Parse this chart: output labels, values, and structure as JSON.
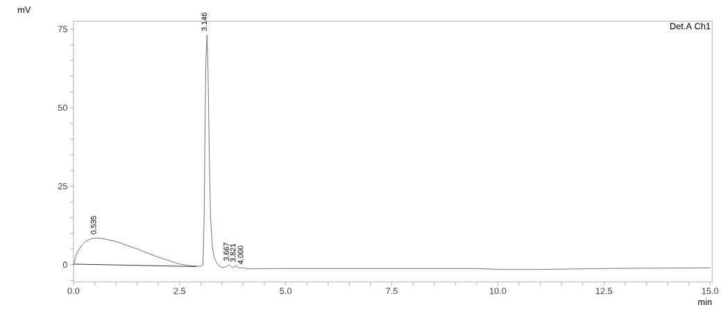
{
  "chart_data": {
    "type": "line",
    "xlabel": "min",
    "ylabel": "mV",
    "xlim": [
      0,
      15.05
    ],
    "ylim": [
      -5.5,
      77.5
    ],
    "xticks": [
      {
        "value": 0,
        "label": "0.0"
      },
      {
        "value": 0.5,
        "label": null
      },
      {
        "value": 1.0,
        "label": null
      },
      {
        "value": 1.5,
        "label": null
      },
      {
        "value": 2.0,
        "label": null
      },
      {
        "value": 2.5,
        "label": "2.5"
      },
      {
        "value": 3.0,
        "label": null
      },
      {
        "value": 3.5,
        "label": null
      },
      {
        "value": 4.0,
        "label": null
      },
      {
        "value": 4.5,
        "label": null
      },
      {
        "value": 5.0,
        "label": "5.0"
      },
      {
        "value": 5.5,
        "label": null
      },
      {
        "value": 6.0,
        "label": null
      },
      {
        "value": 6.5,
        "label": null
      },
      {
        "value": 7.0,
        "label": null
      },
      {
        "value": 7.5,
        "label": "7.5"
      },
      {
        "value": 8.0,
        "label": null
      },
      {
        "value": 8.5,
        "label": null
      },
      {
        "value": 9.0,
        "label": null
      },
      {
        "value": 9.5,
        "label": null
      },
      {
        "value": 10.0,
        "label": "10.0"
      },
      {
        "value": 10.5,
        "label": null
      },
      {
        "value": 11.0,
        "label": null
      },
      {
        "value": 11.5,
        "label": null
      },
      {
        "value": 12.0,
        "label": null
      },
      {
        "value": 12.5,
        "label": "12.5"
      },
      {
        "value": 13.0,
        "label": null
      },
      {
        "value": 13.5,
        "label": null
      },
      {
        "value": 14.0,
        "label": null
      },
      {
        "value": 14.5,
        "label": null
      },
      {
        "value": 15.0,
        "label": "15.0"
      }
    ],
    "yticks": [
      {
        "value": -5,
        "label": null
      },
      0,
      {
        "value": 5,
        "label": null
      },
      {
        "value": 10,
        "label": null
      },
      {
        "value": 15,
        "label": null
      },
      {
        "value": 20,
        "label": null
      },
      25,
      {
        "value": 30,
        "label": null
      },
      {
        "value": 35,
        "label": null
      },
      {
        "value": 40,
        "label": null
      },
      {
        "value": 45,
        "label": null
      },
      50,
      {
        "value": 55,
        "label": null
      },
      {
        "value": 60,
        "label": null
      },
      {
        "value": 65,
        "label": null
      },
      {
        "value": 70,
        "label": null
      },
      75
    ],
    "grid": false,
    "marker": "none",
    "line_style": "solid",
    "series": [
      {
        "color": "#707070",
        "x": [
          0,
          0.05,
          0.1,
          0.2,
          0.3,
          0.4,
          0.535,
          0.7,
          1.0,
          1.5,
          2.0,
          2.5,
          2.8,
          3.0,
          3.05,
          3.08,
          3.1,
          3.12,
          3.146,
          3.17,
          3.2,
          3.23,
          3.27,
          3.32,
          3.4,
          3.5,
          3.6,
          3.667,
          3.75,
          3.821,
          3.9,
          4.0,
          4.1,
          5.0,
          7.5,
          9.5,
          10.0,
          10.5,
          11.0,
          12.0,
          12.5,
          13.5,
          15.0
        ],
        "values": [
          0,
          2.5,
          4.2,
          6.3,
          7.6,
          8.2,
          8.5,
          8.3,
          7.4,
          5.0,
          2.4,
          0.2,
          -0.4,
          -0.5,
          0,
          15,
          45,
          65,
          73.2,
          62,
          35,
          15,
          6,
          2,
          0,
          -0.9,
          -0.6,
          0,
          -1.0,
          -0.3,
          -1.1,
          -1.0,
          -1.3,
          -1.2,
          -1.2,
          -1.2,
          -1.5,
          -1.5,
          -1.5,
          -1.3,
          -1.2,
          -1.1,
          -1.0
        ]
      },
      {
        "color": "#303030",
        "x": [
          0,
          2.9
        ],
        "values": [
          0.2,
          -0.6
        ]
      }
    ],
    "annotations": [
      {
        "text": "0.535",
        "x": 0.535,
        "y": 8.5
      },
      {
        "text": "3.146",
        "x": 3.146,
        "y": 73.2
      },
      {
        "text": "3.667",
        "x": 3.667,
        "y": 0
      },
      {
        "text": "3.821",
        "x": 3.821,
        "y": -0.3
      },
      {
        "text": "4.000",
        "x": 4.0,
        "y": -1.0
      },
      "Det.A Ch1"
    ]
  }
}
